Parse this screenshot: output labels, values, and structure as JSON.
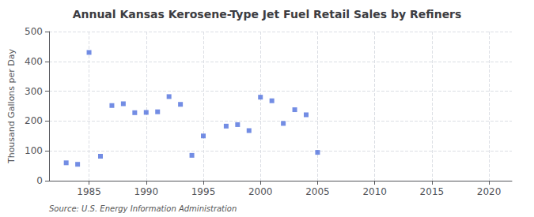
{
  "chart_data": {
    "type": "scatter",
    "title": "Annual Kansas Kerosene-Type Jet Fuel Retail Sales by Refiners",
    "ylabel": "Thousand Gallons per Day",
    "annotation": "Source: U.S. Energy Information Administration",
    "x": [
      1983,
      1984,
      1985,
      1986,
      1987,
      1988,
      1989,
      1990,
      1991,
      1992,
      1993,
      1994,
      1995,
      1997,
      1998,
      1999,
      2000,
      2001,
      2002,
      2003,
      2004,
      2005
    ],
    "values": [
      60,
      55,
      430,
      82,
      252,
      258,
      228,
      229,
      231,
      282,
      256,
      85,
      150,
      183,
      188,
      168,
      280,
      268,
      192,
      238,
      221,
      95
    ],
    "marker": "square",
    "xlim": [
      1981.5,
      2022
    ],
    "xticks": [
      1985,
      1990,
      1995,
      2000,
      2005,
      2010,
      2015,
      2020
    ],
    "ylim": [
      0,
      500
    ],
    "yticks": [
      0,
      100,
      200,
      300,
      400,
      500
    ],
    "grid": true
  }
}
